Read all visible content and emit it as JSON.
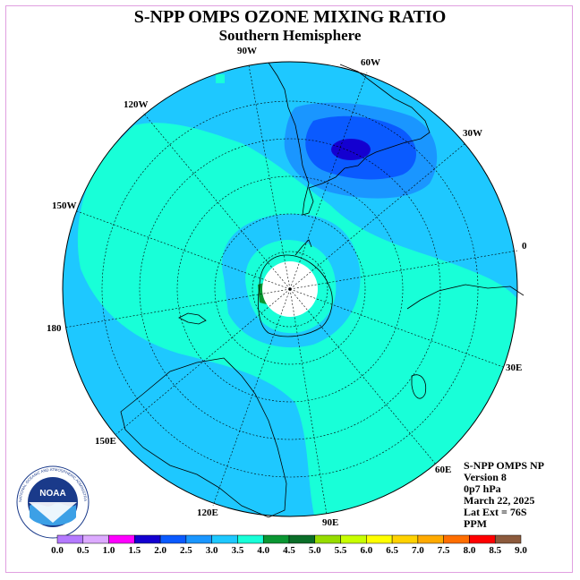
{
  "header": {
    "title": "S-NPP OMPS OZONE MIXING RATIO",
    "subtitle": "Southern Hemisphere"
  },
  "map": {
    "longitude_labels": [
      "90W",
      "60W",
      "30W",
      "0",
      "30E",
      "60E",
      "90E",
      "120E",
      "150E",
      "180",
      "150W",
      "120W"
    ],
    "colors": {
      "ocean_blue_3_0": "#1ec8ff",
      "aqua_3_5": "#18ffd8",
      "mid_blue_2_5": "#1a96ff",
      "dark_blue_2_0": "#0a5aff",
      "deep_blue_1_5": "#1400d0",
      "green_4_0": "#0a9632",
      "polar_fill": "#ffffff",
      "coast": "#000000"
    }
  },
  "info": {
    "line1": "S-NPP OMPS NP",
    "line2": "Version 8",
    "line3": "0p7 hPa",
    "line4": "March 22, 2025",
    "line5": "Lat Ext = 76S",
    "line6": "PPM"
  },
  "colorbar": {
    "ticks": [
      "0.0",
      "0.5",
      "1.0",
      "1.5",
      "2.0",
      "2.5",
      "3.0",
      "3.5",
      "4.0",
      "4.5",
      "5.0",
      "5.5",
      "6.0",
      "6.5",
      "7.0",
      "7.5",
      "8.0",
      "8.5",
      "9.0"
    ],
    "colors": [
      "#b47aff",
      "#dcaaff",
      "#ff00ff",
      "#1400d0",
      "#0a5aff",
      "#1a96ff",
      "#1ec8ff",
      "#18ffd8",
      "#0a9632",
      "#0a6e28",
      "#96dc00",
      "#c8ff00",
      "#ffff00",
      "#ffd200",
      "#ffaa00",
      "#ff6e00",
      "#ff0000",
      "#8c5a3c"
    ]
  },
  "logo": {
    "text": "NOAA",
    "ring_text": "NATIONAL OCEANIC AND ATMOSPHERIC ADMINISTRATION"
  }
}
